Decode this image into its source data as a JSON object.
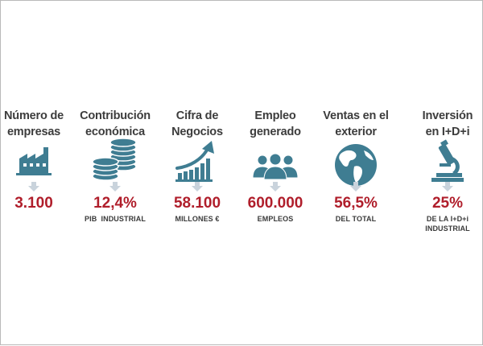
{
  "colors": {
    "accent_red": "#b01e2b",
    "icon_teal": "#3f7d92",
    "title_gray": "#3c3c3c",
    "arrow_gray": "#c9d3dc"
  },
  "stats": [
    {
      "title_line1": "Número de",
      "title_line2": "empresas",
      "value": "3.100",
      "sublabel_line1": "",
      "sublabel_line2": "",
      "icon": "factory-icon"
    },
    {
      "title_line1": "Contribución",
      "title_line2": "económica",
      "value": "12,4%",
      "sublabel_line1": "PIB  INDUSTRIAL",
      "sublabel_line2": "",
      "icon": "coin-stacks-icon"
    },
    {
      "title_line1": "Cifra de",
      "title_line2": "Negocios",
      "value": "58.100",
      "sublabel_line1": "MILLONES €",
      "sublabel_line2": "",
      "icon": "growth-chart-icon"
    },
    {
      "title_line1": "Empleo",
      "title_line2": "generado",
      "value": "600.000",
      "sublabel_line1": "EMPLEOS",
      "sublabel_line2": "",
      "icon": "people-icon"
    },
    {
      "title_line1": "Ventas en el",
      "title_line2": "exterior",
      "value": "56,5%",
      "sublabel_line1": "DEL TOTAL",
      "sublabel_line2": "",
      "icon": "globe-icon"
    },
    {
      "title_line1": "Inversión",
      "title_line2": "en I+D+i",
      "value": "25%",
      "sublabel_line1": "DE LA I+D+i",
      "sublabel_line2": "INDUSTRIAL",
      "icon": "microscope-icon"
    }
  ]
}
